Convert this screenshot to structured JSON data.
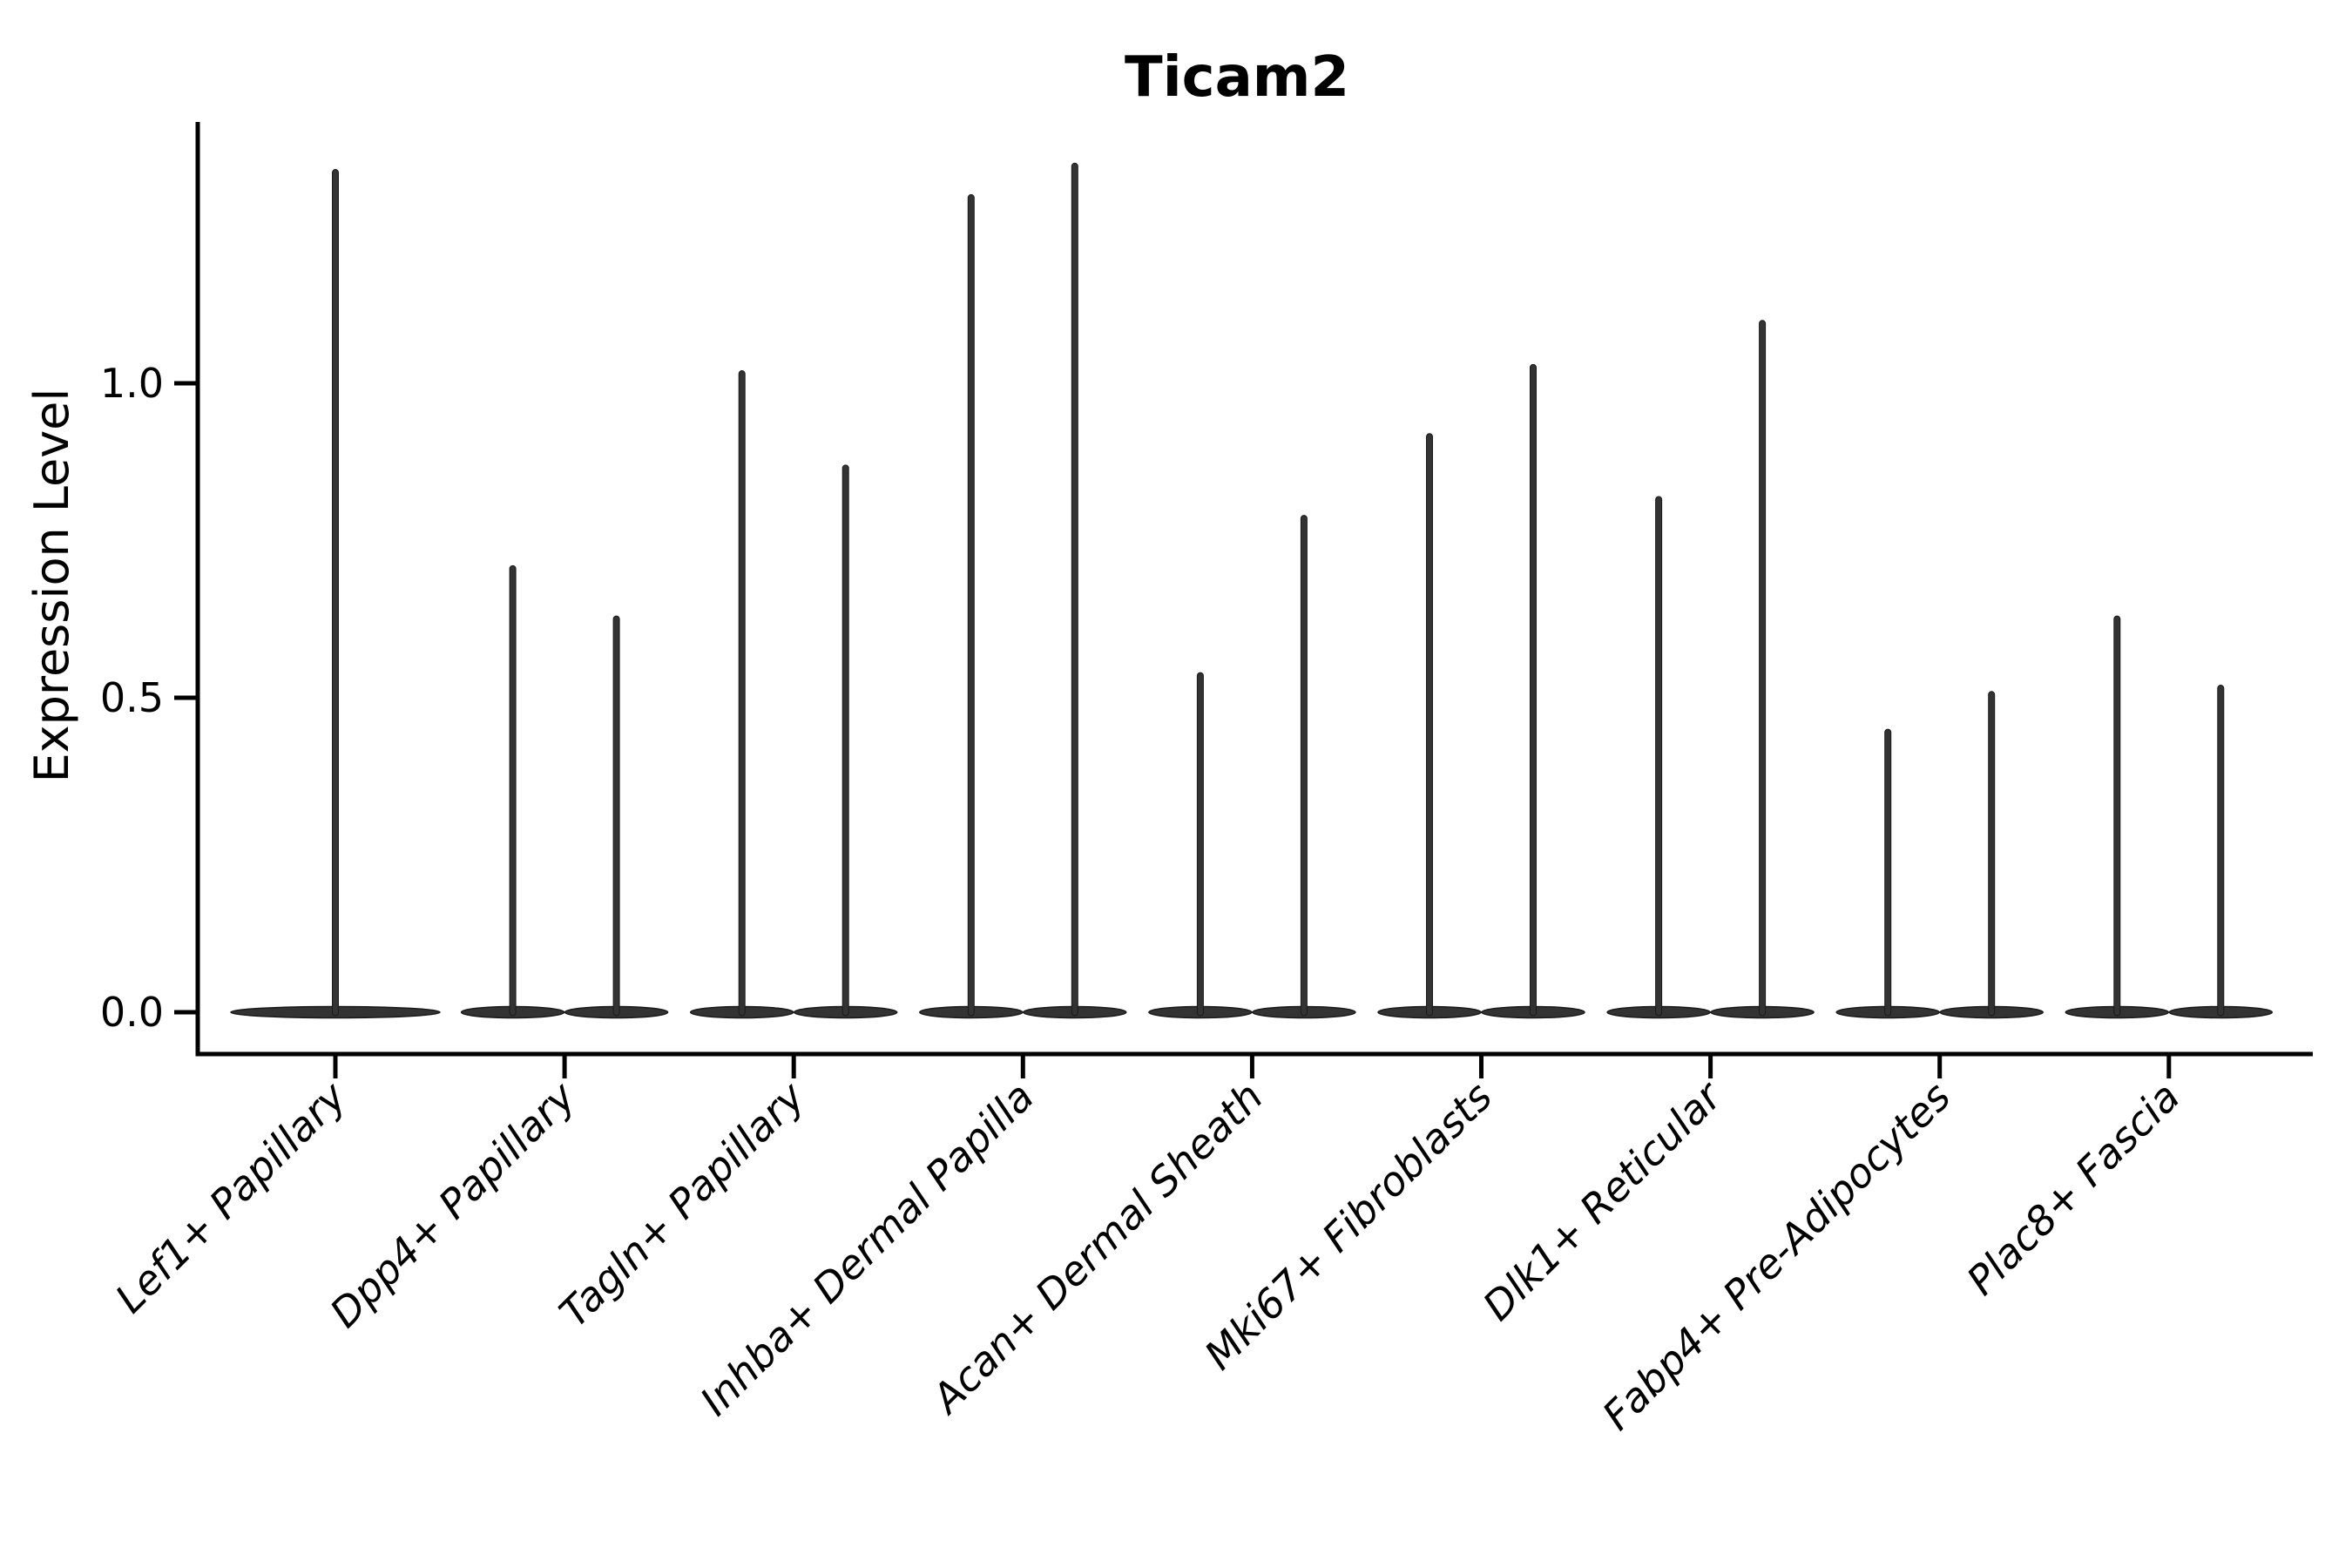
{
  "figure": {
    "background": "#ffffff",
    "axis_color": "#000000",
    "text_color": "#000000",
    "violin_fill": "#333333",
    "violin_edge": "#1a1a1a"
  },
  "chart_data": {
    "type": "violin",
    "title": "Ticam2",
    "xlabel": "",
    "ylabel": "Expression Level",
    "yticks": [
      "0.0",
      "0.5",
      "1.0"
    ],
    "ytick_values": [
      0.0,
      0.5,
      1.0
    ],
    "ylim": [
      -0.07,
      1.42
    ],
    "grid": false,
    "legend_position": "none",
    "categories": [
      "Lef1+ Papillary",
      "Dpp4+ Papillary",
      "Tagln+ Papillary",
      "Inhba+ Dermal Papilla",
      "Acan+ Dermal Sheath",
      "Mki67+ Fibroblasts",
      "Dlk1+ Reticular",
      "Fabp4+ Pre-Adipocytes",
      "Plac8+ Fascia"
    ],
    "groups": [
      {
        "category": "Lef1+ Papillary",
        "violin_maxima": [
          1.34
        ]
      },
      {
        "category": "Dpp4+ Papillary",
        "violin_maxima": [
          0.71,
          0.63
        ]
      },
      {
        "category": "Tagln+ Papillary",
        "violin_maxima": [
          1.02,
          0.87
        ]
      },
      {
        "category": "Inhba+ Dermal Papilla",
        "violin_maxima": [
          1.3,
          1.35
        ]
      },
      {
        "category": "Acan+ Dermal Sheath",
        "violin_maxima": [
          0.54,
          0.79
        ]
      },
      {
        "category": "Mki67+ Fibroblasts",
        "violin_maxima": [
          0.92,
          1.03
        ]
      },
      {
        "category": "Dlk1+ Reticular",
        "violin_maxima": [
          0.82,
          1.1
        ]
      },
      {
        "category": "Fabp4+ Pre-Adipocytes",
        "violin_maxima": [
          0.45,
          0.51
        ]
      },
      {
        "category": "Plac8+ Fascia",
        "violin_maxima": [
          0.63,
          0.52
        ]
      }
    ],
    "violin_shape_note": "distributions concentrated at 0 (wide flat base) with a very thin tail rising to each maximum"
  }
}
